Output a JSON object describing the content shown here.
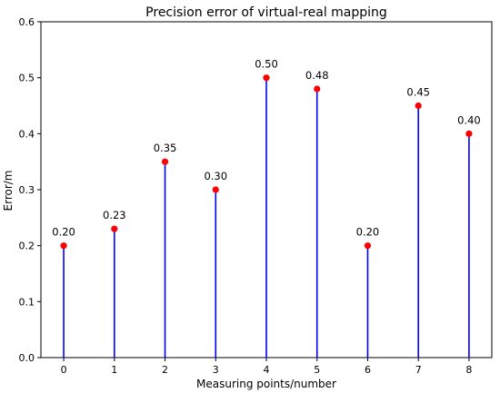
{
  "chart_data": {
    "type": "stem",
    "title": "Precision error of virtual-real mapping",
    "xlabel": "Measuring points/number",
    "ylabel": "Error/m",
    "x": [
      0,
      1,
      2,
      3,
      4,
      5,
      6,
      7,
      8
    ],
    "values": [
      0.2,
      0.23,
      0.35,
      0.3,
      0.5,
      0.48,
      0.2,
      0.45,
      0.4
    ],
    "data_labels": [
      "0.20",
      "0.23",
      "0.35",
      "0.30",
      "0.50",
      "0.48",
      "0.20",
      "0.45",
      "0.40"
    ],
    "xticks": [
      "0",
      "1",
      "2",
      "3",
      "4",
      "5",
      "6",
      "7",
      "8"
    ],
    "yticks": [
      "0.0",
      "0.1",
      "0.2",
      "0.3",
      "0.4",
      "0.5",
      "0.6"
    ],
    "xlim": [
      -0.45,
      8.45
    ],
    "ylim": [
      0,
      0.6
    ],
    "grid": false,
    "colors": {
      "stem": "#0000ff",
      "marker": "#ff0000",
      "axis": "#000000"
    }
  }
}
